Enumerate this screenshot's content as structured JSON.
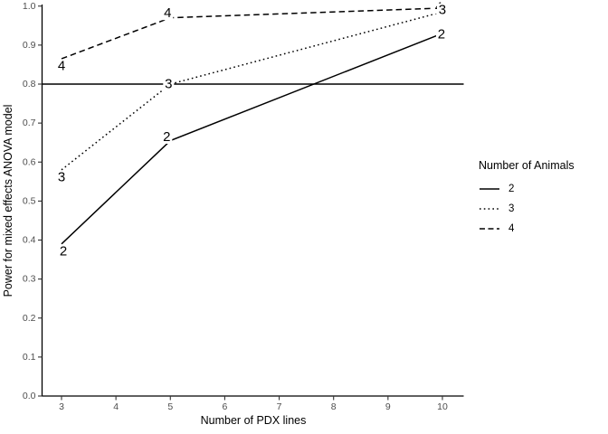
{
  "figure": {
    "background": "#ffffff",
    "line_color": "#000000",
    "axis_color": "#000000",
    "tick_color": "#333333",
    "tick_label_color": "#4d4d4d"
  },
  "axes": {
    "x_title": "Number of PDX lines",
    "y_title": "Power for mixed effects ANOVA model"
  },
  "legend": {
    "title": "Number of Animals",
    "items": [
      {
        "label": "2",
        "linetype": "solid"
      },
      {
        "label": "3",
        "linetype": "dotted"
      },
      {
        "label": "4",
        "linetype": "dashed"
      }
    ]
  },
  "chart_data": {
    "type": "line",
    "title": "",
    "xlabel": "Number of PDX lines",
    "ylabel": "Power for mixed effects ANOVA model",
    "x": [
      3,
      5,
      10
    ],
    "series": [
      {
        "name": "2",
        "linetype": "solid",
        "values": [
          0.39,
          0.655,
          0.93
        ]
      },
      {
        "name": "3",
        "linetype": "dotted",
        "values": [
          0.58,
          0.8,
          0.985
        ]
      },
      {
        "name": "4",
        "linetype": "dashed",
        "values": [
          0.865,
          0.97,
          0.995
        ]
      }
    ],
    "reference_line_y": 0.8,
    "xlim": [
      3,
      10
    ],
    "ylim": [
      0.0,
      1.0
    ],
    "x_ticks": [
      3,
      4,
      5,
      6,
      7,
      8,
      9,
      10
    ],
    "x_tick_labels": [
      "3",
      "4",
      "5",
      "6",
      "7",
      "8",
      "9",
      "10"
    ],
    "y_ticks": [
      0.0,
      0.1,
      0.2,
      0.3,
      0.4,
      0.5,
      0.6,
      0.7,
      0.8,
      0.9,
      1.0
    ],
    "y_tick_labels": [
      "0.0",
      "0.1",
      "0.2",
      "0.3",
      "0.4",
      "0.5",
      "0.6",
      "0.7",
      "0.8",
      "0.9",
      "1.0"
    ],
    "grid": false,
    "legend_position": "right",
    "legend_title": "Number of Animals"
  }
}
